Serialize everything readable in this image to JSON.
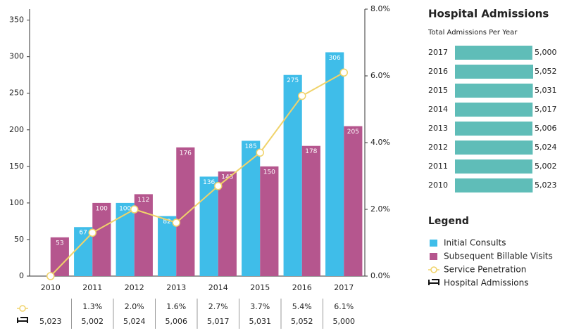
{
  "chart_data": {
    "type": "bar",
    "categories": [
      "2010",
      "2011",
      "2012",
      "2013",
      "2014",
      "2015",
      "2016",
      "2017"
    ],
    "series": [
      {
        "name": "Initial Consults",
        "color": "#3fbde9",
        "values": [
          null,
          67,
          100,
          82,
          136,
          185,
          275,
          306
        ]
      },
      {
        "name": "Subsequent Billable Visits",
        "color": "#b5568e",
        "values": [
          53,
          100,
          112,
          176,
          143,
          150,
          178,
          205
        ]
      },
      {
        "name": "Service Penetration",
        "type": "line",
        "axis": "y2",
        "color": "#f0d36a",
        "values": [
          0.0,
          1.3,
          2.0,
          1.6,
          2.7,
          3.7,
          5.4,
          6.1
        ],
        "value_labels": [
          null,
          "1.3%",
          "2.0%",
          "1.6%",
          "2.7%",
          "3.7%",
          "5.4%",
          "6.1%"
        ]
      }
    ],
    "admissions": {
      "name": "Hospital Admissions",
      "values": [
        5023,
        5002,
        5024,
        5006,
        5017,
        5031,
        5052,
        5000
      ],
      "value_labels": [
        "5,023",
        "5,002",
        "5,024",
        "5,006",
        "5,017",
        "5,031",
        "5,052",
        "5,000"
      ]
    },
    "ylim": [
      0,
      365
    ],
    "yticks": [
      0,
      50,
      100,
      150,
      200,
      250,
      300,
      350
    ],
    "y2lim": [
      0,
      8
    ],
    "y2ticks": [
      {
        "value": 0,
        "label": "0.0%"
      },
      {
        "value": 2,
        "label": "2.0%"
      },
      {
        "value": 4,
        "label": "4.0%"
      },
      {
        "value": 6,
        "label": "6.0%"
      },
      {
        "value": 8,
        "label": "8.0%"
      }
    ],
    "legend_title": "Legend"
  },
  "panel": {
    "type": "bar",
    "title": "Hospital Admissions",
    "subtitle": "Total Admissions Per Year",
    "color": "#5fbdb8",
    "categories": [
      "2017",
      "2016",
      "2015",
      "2014",
      "2013",
      "2012",
      "2011",
      "2010"
    ],
    "values": [
      5000,
      5052,
      5031,
      5017,
      5006,
      5024,
      5002,
      5023
    ],
    "value_labels": [
      "5,000",
      "5,052",
      "5,031",
      "5,017",
      "5,006",
      "5,024",
      "5,002",
      "5,023"
    ]
  }
}
